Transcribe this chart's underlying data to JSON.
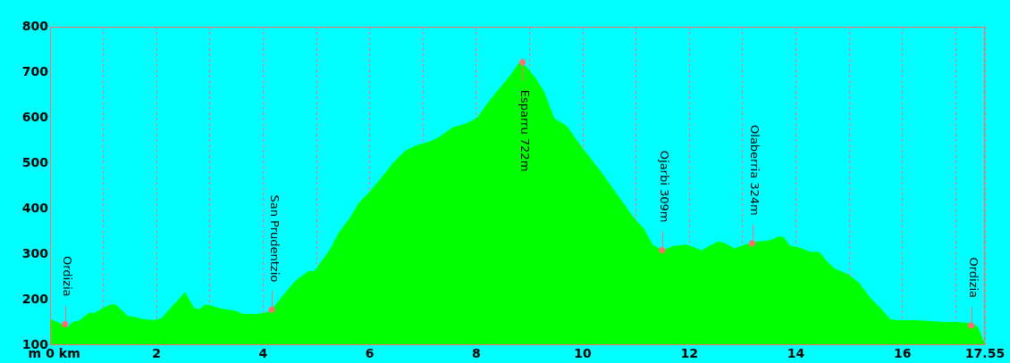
{
  "chart_data": {
    "type": "area",
    "color": "#00ff00",
    "x": [
      0,
      0.17,
      0.34,
      0.42,
      0.56,
      0.73,
      0.84,
      0.98,
      1.15,
      1.23,
      1.35,
      1.46,
      1.6,
      1.71,
      1.96,
      2.1,
      2.3,
      2.44,
      2.53,
      2.66,
      2.72,
      2.8,
      2.91,
      3.0,
      3.19,
      3.47,
      3.61,
      3.81,
      4.03,
      4.09,
      4.2,
      4.34,
      4.54,
      4.65,
      4.87,
      4.96,
      5.1,
      5.26,
      5.43,
      5.63,
      5.82,
      5.99,
      6.22,
      6.44,
      6.66,
      6.89,
      7.11,
      7.28,
      7.56,
      7.78,
      8.01,
      8.17,
      8.34,
      8.62,
      8.82,
      8.96,
      9.13,
      9.27,
      9.46,
      9.69,
      9.99,
      10.3,
      10.58,
      10.86,
      11.0,
      11.14,
      11.31,
      11.5,
      11.7,
      11.93,
      12.04,
      12.23,
      12.37,
      12.54,
      12.65,
      12.85,
      13.04,
      13.27,
      13.49,
      13.69,
      13.77,
      13.88,
      14.05,
      14.28,
      14.44,
      14.58,
      14.72,
      14.98,
      15.17,
      15.4,
      15.62,
      15.76,
      15.9,
      16.23,
      16.8,
      17.02,
      17.3,
      17.41,
      17.55
    ],
    "values": [
      157,
      148,
      140,
      150,
      154,
      170,
      170,
      180,
      189,
      188,
      176,
      163,
      161,
      157,
      154,
      159,
      186,
      203,
      216,
      189,
      180,
      178,
      188,
      187,
      180,
      175,
      168,
      167,
      170,
      173,
      183,
      203,
      232,
      245,
      263,
      261,
      284,
      310,
      348,
      379,
      415,
      435,
      467,
      500,
      526,
      539,
      546,
      555,
      578,
      585,
      598,
      624,
      650,
      689,
      722,
      709,
      683,
      657,
      598,
      582,
      533,
      487,
      441,
      395,
      373,
      356,
      320,
      308,
      317,
      320,
      317,
      307,
      317,
      327,
      324,
      312,
      320,
      327,
      329,
      338,
      337,
      318,
      314,
      304,
      304,
      284,
      268,
      255,
      238,
      203,
      177,
      157,
      154,
      154,
      150,
      150,
      147,
      140,
      100
    ],
    "xlim": [
      0,
      17.55
    ],
    "xticks": [
      0,
      {
        "value": 1,
        "label": null
      },
      2,
      {
        "value": 3,
        "label": null
      },
      4,
      {
        "value": 5,
        "label": null
      },
      6,
      {
        "value": 7,
        "label": null
      },
      8,
      {
        "value": 9,
        "label": null
      },
      10,
      {
        "value": 11,
        "label": null
      },
      12,
      {
        "value": 13,
        "label": null
      },
      14,
      {
        "value": 15,
        "label": null
      },
      16,
      {
        "value": 17,
        "label": null
      },
      17.55
    ],
    "ylim": [
      100,
      800
    ],
    "yticks": [
      100,
      200,
      300,
      400,
      500,
      600,
      700,
      800
    ],
    "xlabel": "km",
    "ylabel": "m",
    "grid": "x",
    "annotations": [
      {
        "text": "Ordizia",
        "x": 0.28,
        "y": 146
      },
      {
        "text": "San Prudentzio",
        "x": 4.16,
        "y": 178
      },
      {
        "text": "Esparru 722m",
        "x": 8.87,
        "y": 722
      },
      {
        "text": "Ojarbi 309m",
        "x": 11.49,
        "y": 309
      },
      {
        "text": "Olaberria 324m",
        "x": 13.18,
        "y": 324
      },
      {
        "text": "Ordizia",
        "x": 17.29,
        "y": 143
      }
    ]
  }
}
